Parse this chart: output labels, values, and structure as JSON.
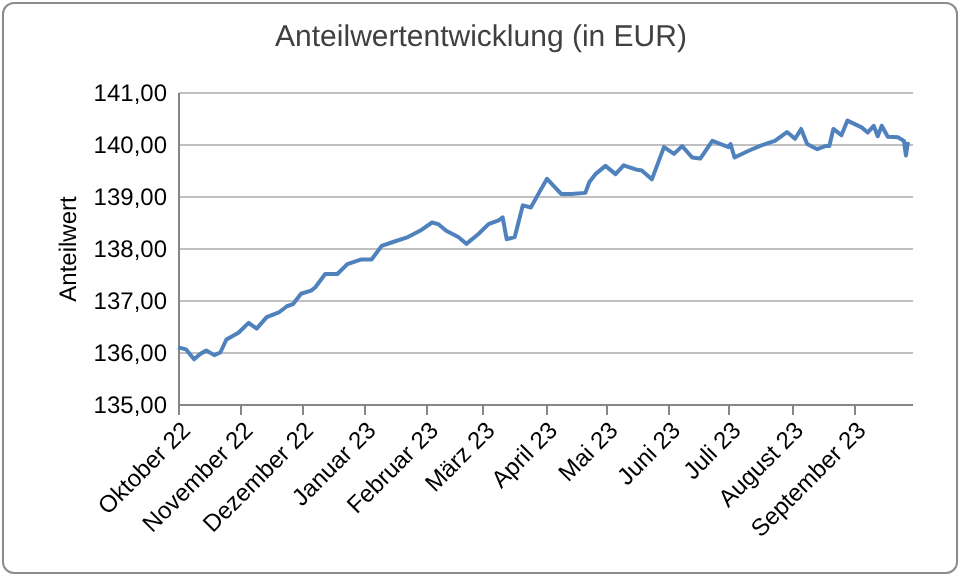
{
  "chart_data": {
    "type": "line",
    "title": "Anteilwertentwicklung  (in EUR)",
    "ylabel": "Anteilwert",
    "x": [
      "2022-10-01",
      "2022-10-05",
      "2022-10-09",
      "2022-10-12",
      "2022-10-15",
      "2022-10-19",
      "2022-10-22",
      "2022-10-25",
      "2022-10-31",
      "2022-11-05",
      "2022-11-09",
      "2022-11-14",
      "2022-11-20",
      "2022-11-24",
      "2022-11-27",
      "2022-12-01",
      "2022-12-06",
      "2022-12-08",
      "2022-12-13",
      "2022-12-19",
      "2022-12-24",
      "2022-12-31",
      "2023-01-05",
      "2023-01-10",
      "2023-01-16",
      "2023-01-23",
      "2023-01-29",
      "2023-02-04",
      "2023-02-07",
      "2023-02-11",
      "2023-02-17",
      "2023-02-21",
      "2023-02-27",
      "2023-03-04",
      "2023-03-09",
      "2023-03-11",
      "2023-03-13",
      "2023-03-17",
      "2023-03-21",
      "2023-03-25",
      "2023-03-29",
      "2023-04-02",
      "2023-04-09",
      "2023-04-14",
      "2023-04-21",
      "2023-04-23",
      "2023-04-26",
      "2023-05-01",
      "2023-05-06",
      "2023-05-10",
      "2023-05-16",
      "2023-05-19",
      "2023-05-24",
      "2023-05-30",
      "2023-06-04",
      "2023-06-08",
      "2023-06-13",
      "2023-06-17",
      "2023-06-23",
      "2023-07-01",
      "2023-07-02",
      "2023-07-04",
      "2023-07-11",
      "2023-07-17",
      "2023-07-24",
      "2023-07-30",
      "2023-08-03",
      "2023-08-06",
      "2023-08-09",
      "2023-08-14",
      "2023-08-18",
      "2023-08-20",
      "2023-08-22",
      "2023-08-26",
      "2023-08-29",
      "2023-09-05",
      "2023-09-08",
      "2023-09-11",
      "2023-09-13",
      "2023-09-15",
      "2023-09-18",
      "2023-09-23",
      "2023-09-26",
      "2023-09-27",
      "2023-09-28"
    ],
    "series": [
      {
        "color": "#4f81bd",
        "values": [
          136.09,
          136.05,
          135.86,
          135.96,
          136.03,
          135.94,
          135.99,
          136.24,
          136.37,
          136.56,
          136.45,
          136.67,
          136.76,
          136.88,
          136.92,
          137.12,
          137.18,
          137.24,
          137.5,
          137.5,
          137.69,
          137.78,
          137.78,
          138.04,
          138.12,
          138.21,
          138.33,
          138.49,
          138.46,
          138.33,
          138.21,
          138.08,
          138.27,
          138.46,
          138.53,
          138.59,
          138.17,
          138.21,
          138.82,
          138.78,
          139.06,
          139.33,
          139.04,
          139.04,
          139.06,
          139.27,
          139.42,
          139.58,
          139.42,
          139.59,
          139.51,
          139.49,
          139.32,
          139.94,
          139.81,
          139.96,
          139.74,
          139.72,
          140.06,
          139.94,
          140.0,
          139.74,
          139.87,
          139.97,
          140.06,
          140.23,
          140.1,
          140.29,
          140.0,
          139.9,
          139.96,
          139.96,
          140.29,
          140.17,
          140.45,
          140.32,
          140.22,
          140.35,
          140.15,
          140.35,
          140.14,
          140.13,
          140.06,
          139.78,
          140.04
        ]
      }
    ],
    "xlim": [
      "2022-10-01",
      "2023-09-30"
    ],
    "xticks": [
      {
        "value": "2022-10-01",
        "label": "Oktober 22"
      },
      {
        "value": "2022-11-01",
        "label": "November 22"
      },
      {
        "value": "2022-12-01",
        "label": "Dezember 22"
      },
      {
        "value": "2023-01-01",
        "label": "Januar 23"
      },
      {
        "value": "2023-02-01",
        "label": "Februar 23"
      },
      {
        "value": "2023-03-01",
        "label": "März 23"
      },
      {
        "value": "2023-04-01",
        "label": "April 23"
      },
      {
        "value": "2023-05-01",
        "label": "Mai 23"
      },
      {
        "value": "2023-06-01",
        "label": "Juni 23"
      },
      {
        "value": "2023-07-01",
        "label": "Juli 23"
      },
      {
        "value": "2023-08-01",
        "label": "August 23"
      },
      {
        "value": "2023-09-01",
        "label": "September 23"
      }
    ],
    "ylim": [
      135,
      141
    ],
    "yticks": [
      {
        "value": 135,
        "label": "135,00"
      },
      {
        "value": 136,
        "label": "136,00"
      },
      {
        "value": 137,
        "label": "137,00"
      },
      {
        "value": 138,
        "label": "138,00"
      },
      {
        "value": 139,
        "label": "139,00"
      },
      {
        "value": 140,
        "label": "140,00"
      },
      {
        "value": 141,
        "label": "141,00"
      }
    ],
    "grid": "y",
    "marker": "none",
    "line_style": "solid"
  }
}
